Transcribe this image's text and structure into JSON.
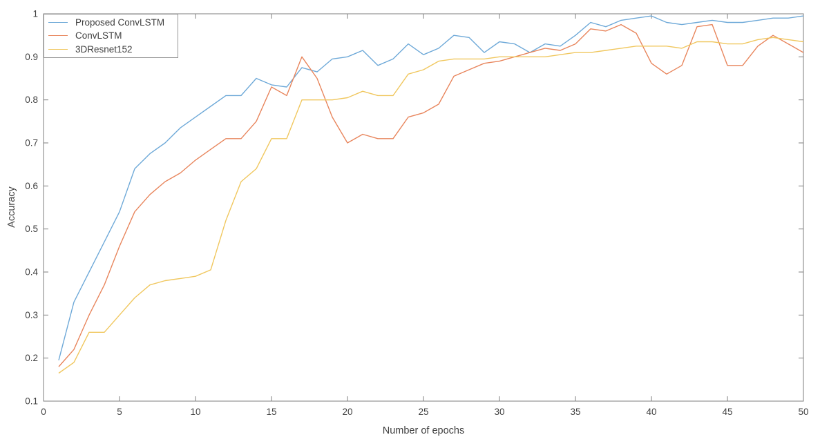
{
  "figure": {
    "background": "#ffffff",
    "box_color": "#7d7d7d",
    "tick_text_color": "#3f3f3f"
  },
  "chart_data": {
    "type": "line",
    "title": "",
    "xlabel": "Number of epochs",
    "ylabel": "Accuracy",
    "xlim": [
      0,
      50
    ],
    "ylim": [
      0.1,
      1.0
    ],
    "grid": false,
    "legend_position": "top-left",
    "x_ticks": [
      0,
      5,
      10,
      15,
      20,
      25,
      30,
      35,
      40,
      45,
      50
    ],
    "x_tick_labels": [
      "0",
      "5",
      "10",
      "15",
      "20",
      "25",
      "30",
      "35",
      "40",
      "45",
      "50"
    ],
    "y_ticks": [
      0.1,
      0.2,
      0.3,
      0.4,
      0.5,
      0.6,
      0.7,
      0.8,
      0.9,
      1.0
    ],
    "y_tick_labels": [
      "0.1",
      "0.2",
      "0.3",
      "0.4",
      "0.5",
      "0.6",
      "0.7",
      "0.8",
      "0.9",
      "1"
    ],
    "x": [
      1,
      2,
      3,
      4,
      5,
      6,
      7,
      8,
      9,
      10,
      11,
      12,
      13,
      14,
      15,
      16,
      17,
      18,
      19,
      20,
      21,
      22,
      23,
      24,
      25,
      26,
      27,
      28,
      29,
      30,
      31,
      32,
      33,
      34,
      35,
      36,
      37,
      38,
      39,
      40,
      41,
      42,
      43,
      44,
      45,
      46,
      47,
      48,
      49,
      50
    ],
    "series": [
      {
        "name": "Proposed ConvLSTM",
        "color": "#6ea9d8",
        "values": [
          0.195,
          0.33,
          0.4,
          0.47,
          0.54,
          0.64,
          0.675,
          0.7,
          0.735,
          0.76,
          0.785,
          0.81,
          0.81,
          0.85,
          0.835,
          0.83,
          0.875,
          0.865,
          0.895,
          0.9,
          0.915,
          0.88,
          0.895,
          0.93,
          0.905,
          0.92,
          0.95,
          0.945,
          0.91,
          0.935,
          0.93,
          0.91,
          0.93,
          0.925,
          0.95,
          0.98,
          0.97,
          0.985,
          0.99,
          0.995,
          0.98,
          0.975,
          0.98,
          0.985,
          0.98,
          0.98,
          0.985,
          0.99,
          0.99,
          0.995
        ]
      },
      {
        "name": "ConvLSTM",
        "color": "#e8855c",
        "values": [
          0.18,
          0.22,
          0.3,
          0.37,
          0.46,
          0.54,
          0.58,
          0.61,
          0.63,
          0.66,
          0.685,
          0.71,
          0.71,
          0.75,
          0.83,
          0.81,
          0.9,
          0.85,
          0.76,
          0.7,
          0.72,
          0.71,
          0.71,
          0.76,
          0.77,
          0.79,
          0.855,
          0.87,
          0.885,
          0.89,
          0.9,
          0.91,
          0.92,
          0.915,
          0.93,
          0.965,
          0.96,
          0.975,
          0.955,
          0.885,
          0.86,
          0.88,
          0.97,
          0.975,
          0.88,
          0.88,
          0.925,
          0.95,
          0.93,
          0.91
        ]
      },
      {
        "name": "3DResnet152",
        "color": "#f0c75e",
        "values": [
          0.165,
          0.19,
          0.26,
          0.26,
          0.3,
          0.34,
          0.37,
          0.38,
          0.385,
          0.39,
          0.405,
          0.52,
          0.61,
          0.64,
          0.71,
          0.71,
          0.8,
          0.8,
          0.8,
          0.805,
          0.82,
          0.81,
          0.81,
          0.86,
          0.87,
          0.89,
          0.895,
          0.895,
          0.895,
          0.9,
          0.9,
          0.9,
          0.9,
          0.905,
          0.91,
          0.91,
          0.915,
          0.92,
          0.925,
          0.925,
          0.925,
          0.92,
          0.935,
          0.935,
          0.93,
          0.93,
          0.94,
          0.945,
          0.94,
          0.935
        ]
      }
    ]
  }
}
